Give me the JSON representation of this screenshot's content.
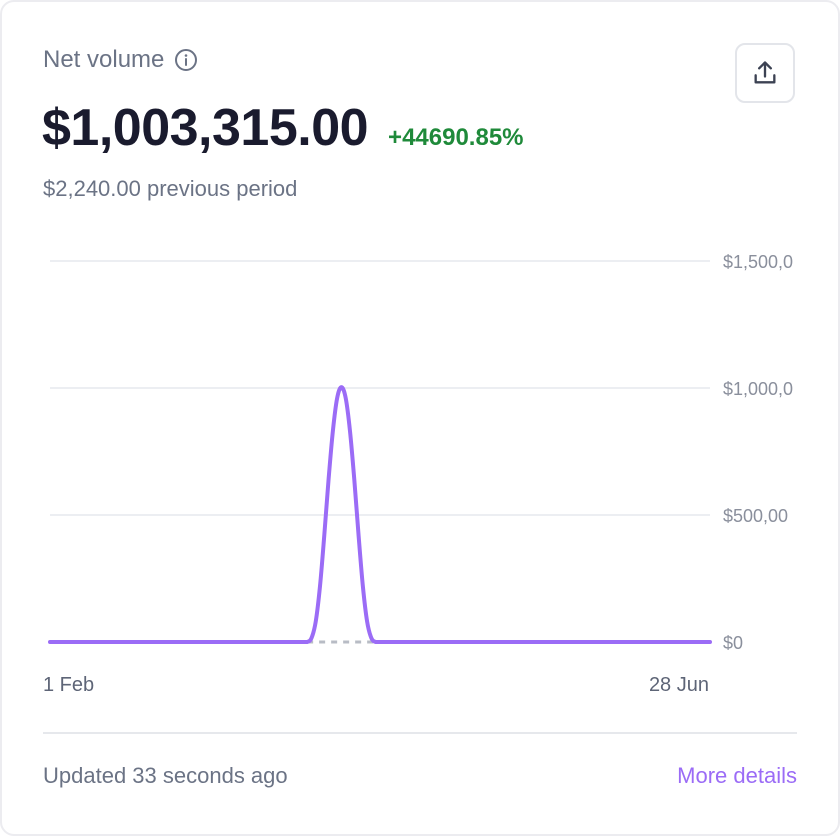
{
  "header": {
    "title": "Net volume"
  },
  "summary": {
    "amount": "$1,003,315.00",
    "change": "+44690.85%",
    "previous": "$2,240.00 previous period"
  },
  "colors": {
    "line": "#9b6cf6",
    "positive": "#1f8a3a",
    "link": "#9b6cf6",
    "grid": "#eceef2",
    "baseline_dash": "#b8bcc5"
  },
  "chart_data": {
    "type": "line",
    "x_start_label": "1 Feb",
    "x_end_label": "28 Jun",
    "ylim": [
      0,
      1500000
    ],
    "y_ticks": [
      {
        "value": 1500000,
        "label": "$1,500,0"
      },
      {
        "value": 1000000,
        "label": "$1,000,0"
      },
      {
        "value": 500000,
        "label": "$500,00"
      },
      {
        "value": 0,
        "label": "$0"
      }
    ],
    "grid": true,
    "series": [
      {
        "values": [
          0,
          0,
          0,
          0,
          0,
          0,
          0,
          0,
          0,
          0,
          0,
          0,
          0,
          0,
          0,
          0,
          0,
          0,
          0,
          0,
          0,
          0,
          0,
          0,
          0,
          0,
          0,
          0,
          0,
          0,
          0,
          0,
          0,
          0,
          0,
          0,
          0,
          0,
          0,
          0,
          0,
          0,
          0,
          0,
          0,
          0,
          0,
          0,
          0,
          0,
          0,
          0,
          0,
          0,
          0,
          0,
          0,
          0,
          0,
          0,
          0,
          15000,
          80000,
          220000,
          420000,
          640000,
          830000,
          960000,
          1003315,
          960000,
          830000,
          640000,
          420000,
          220000,
          80000,
          15000,
          0,
          0,
          0,
          0,
          0,
          0,
          0,
          0,
          0,
          0,
          0,
          0,
          0,
          0,
          0,
          0,
          0,
          0,
          0,
          0,
          0,
          0,
          0,
          0,
          0,
          0,
          0,
          0,
          0,
          0,
          0,
          0,
          0,
          0,
          0,
          0,
          0,
          0,
          0,
          0,
          0,
          0,
          0,
          0,
          0,
          0,
          0,
          0,
          0,
          0,
          0,
          0,
          0,
          0,
          0,
          0,
          0,
          0,
          0,
          0,
          0,
          0,
          0,
          0,
          0,
          0,
          0,
          0,
          0,
          0,
          0,
          0,
          0,
          0,
          0,
          0,
          0,
          0,
          0
        ]
      }
    ]
  },
  "footer": {
    "updated": "Updated 33 seconds ago",
    "more_details": "More details"
  }
}
